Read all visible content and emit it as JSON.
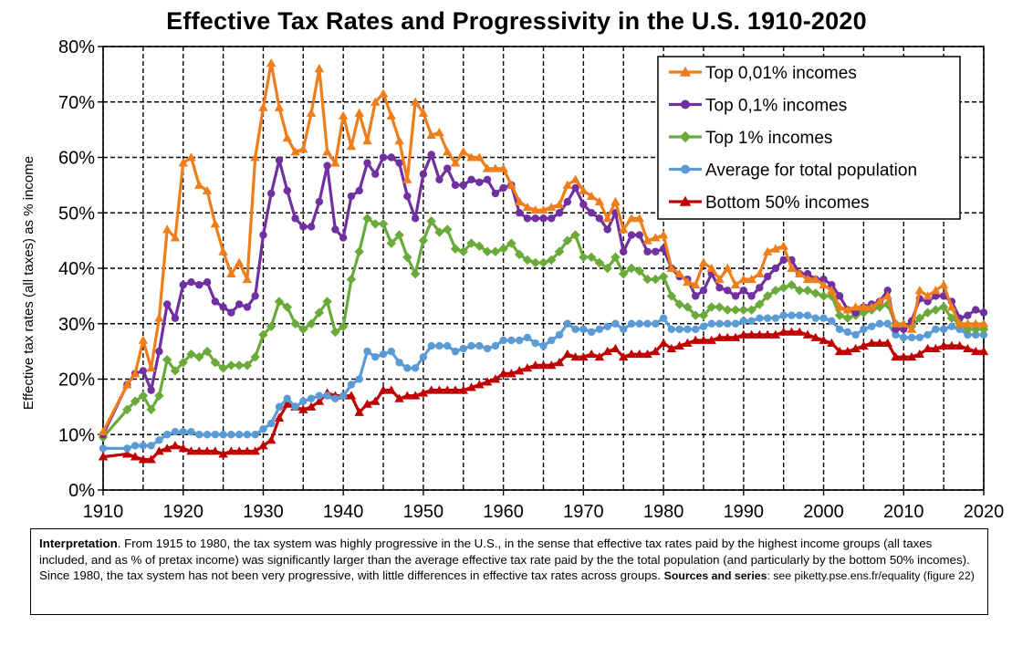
{
  "chart_data": {
    "type": "line",
    "title": "Effective Tax Rates and Progressivity in the U.S. 1910-2020",
    "ylabel": "Effective tax rates (all taxes) as % income",
    "xlabel": "",
    "xlim": [
      1910,
      2020
    ],
    "ylim": [
      0,
      80
    ],
    "x_ticks": [
      "1910",
      "1920",
      "1930",
      "1940",
      "1950",
      "1960",
      "1970",
      "1980",
      "1990",
      "2000",
      "2010",
      "2020"
    ],
    "y_ticks": [
      "0%",
      "10%",
      "20%",
      "30%",
      "40%",
      "50%",
      "60%",
      "70%",
      "80%"
    ],
    "grid": true,
    "legend_position": "top-right",
    "x": [
      1910,
      1913,
      1914,
      1915,
      1916,
      1917,
      1918,
      1919,
      1920,
      1921,
      1922,
      1923,
      1924,
      1925,
      1926,
      1927,
      1928,
      1929,
      1930,
      1931,
      1932,
      1933,
      1934,
      1935,
      1936,
      1937,
      1938,
      1939,
      1940,
      1941,
      1942,
      1943,
      1944,
      1945,
      1946,
      1947,
      1948,
      1949,
      1950,
      1951,
      1952,
      1953,
      1954,
      1955,
      1956,
      1957,
      1958,
      1959,
      1960,
      1961,
      1962,
      1963,
      1964,
      1965,
      1966,
      1967,
      1968,
      1969,
      1970,
      1971,
      1972,
      1973,
      1974,
      1975,
      1976,
      1977,
      1978,
      1979,
      1980,
      1981,
      1982,
      1983,
      1984,
      1985,
      1986,
      1987,
      1988,
      1989,
      1990,
      1991,
      1992,
      1993,
      1994,
      1995,
      1996,
      1997,
      1998,
      1999,
      2000,
      2001,
      2002,
      2003,
      2004,
      2005,
      2006,
      2007,
      2008,
      2009,
      2010,
      2011,
      2012,
      2013,
      2014,
      2015,
      2016,
      2017,
      2018,
      2019,
      2020
    ],
    "series": [
      {
        "name": "Top 0,01% incomes",
        "color": "#ef7d1a",
        "marker": "triangle",
        "values": [
          10.5,
          19,
          21,
          27,
          22,
          31,
          47,
          45.5,
          59,
          60,
          55,
          54,
          48,
          43,
          39,
          41,
          38,
          60,
          69,
          77,
          69,
          63.5,
          61,
          61.5,
          68,
          76,
          61,
          59,
          67.5,
          62,
          68,
          63,
          70,
          71.5,
          67.5,
          63,
          56,
          70,
          68,
          64,
          64.5,
          61,
          59,
          61,
          60,
          60,
          58,
          58,
          58,
          55,
          52,
          51,
          50.5,
          50.5,
          51,
          51.5,
          55,
          56,
          54,
          53,
          52,
          49,
          52,
          47,
          49,
          49,
          45,
          45.5,
          46,
          40,
          39,
          37.5,
          37,
          41,
          40,
          38,
          40,
          37,
          38,
          38,
          39,
          43,
          43.5,
          44,
          40,
          39,
          38,
          38,
          37,
          36,
          33,
          32.5,
          33,
          33,
          33,
          34,
          35,
          30,
          30,
          29,
          36,
          35,
          36,
          37,
          33,
          30,
          30,
          30,
          30
        ]
      },
      {
        "name": "Top 0,1% incomes",
        "color": "#7030a0",
        "marker": "circle",
        "values": [
          10,
          19,
          21,
          21.5,
          18,
          25,
          33.5,
          31,
          37,
          37.5,
          37,
          37.5,
          34,
          33,
          32,
          33.5,
          33,
          35,
          46,
          53.5,
          59.5,
          54,
          49,
          47.5,
          47.5,
          52,
          58.5,
          47,
          45.5,
          53,
          54,
          59,
          57,
          60,
          60,
          59,
          53,
          49,
          57,
          60.5,
          56,
          58,
          55,
          55,
          56,
          55.5,
          56,
          53.5,
          54.5,
          55,
          50,
          49,
          49,
          49,
          49,
          50,
          52,
          54.5,
          51.5,
          50,
          49,
          47,
          50,
          43,
          46,
          46,
          43,
          43,
          43.5,
          40,
          38.5,
          38,
          35,
          36,
          39,
          36.5,
          36,
          35,
          36,
          35,
          36.5,
          38.5,
          40,
          41.5,
          41.5,
          39,
          39,
          38,
          38,
          37,
          35,
          32.5,
          32,
          33,
          33.5,
          34,
          36,
          29,
          29,
          30.5,
          34.5,
          34,
          35,
          35,
          34,
          31,
          31.5,
          32.5,
          32
        ]
      },
      {
        "name": "Top 1% incomes",
        "color": "#6aaa3a",
        "marker": "diamond",
        "values": [
          9.5,
          14.5,
          16,
          17,
          14.5,
          17,
          23.5,
          21.5,
          23,
          24.5,
          24,
          25,
          23,
          22,
          22.5,
          22.5,
          22.5,
          24,
          28,
          29.5,
          34,
          33,
          30,
          29,
          30,
          32,
          34,
          28.5,
          29.5,
          38,
          43,
          49,
          48,
          48,
          44.5,
          46,
          42,
          39,
          45,
          48.5,
          46.5,
          47,
          43.5,
          43,
          44.5,
          44,
          43,
          43,
          43.5,
          44.5,
          42.5,
          41.5,
          41,
          41,
          41.5,
          43,
          45,
          46,
          42,
          42,
          41,
          40,
          42,
          39,
          40,
          39.5,
          38,
          38,
          38.5,
          35,
          33.5,
          33,
          31.5,
          31.5,
          33,
          33,
          32.5,
          32.5,
          32.5,
          32.5,
          33.5,
          35,
          36,
          36.5,
          37,
          36,
          36,
          35.5,
          35,
          35,
          31.5,
          31,
          31.5,
          32,
          32.5,
          33,
          33.5,
          30,
          29.5,
          29.5,
          31,
          32,
          32.5,
          33,
          31,
          30,
          29,
          29,
          29
        ]
      },
      {
        "name": "Average for total population",
        "color": "#5b9bd5",
        "marker": "circle",
        "values": [
          7.5,
          7.5,
          8,
          8,
          8,
          9,
          10,
          10.5,
          10.5,
          10.5,
          10,
          10,
          10,
          10,
          10,
          10,
          10,
          10,
          11,
          12,
          15,
          16.5,
          15,
          16,
          16.5,
          17,
          17,
          16.5,
          17,
          19,
          20,
          25,
          24,
          24.5,
          25,
          23,
          22,
          22,
          24,
          26,
          26,
          26,
          25,
          25.5,
          26,
          26,
          25.5,
          26,
          27,
          27,
          27,
          27.5,
          26.5,
          26,
          27,
          28,
          30,
          29,
          29,
          28.5,
          29,
          29.5,
          30,
          29,
          30,
          30,
          30,
          30,
          31,
          29,
          29,
          29,
          29,
          29.5,
          30,
          30,
          30,
          30,
          30.5,
          30.5,
          31,
          31,
          31,
          31.5,
          31.5,
          31.5,
          31.5,
          31,
          31,
          30.5,
          29,
          28.5,
          28,
          29,
          29.5,
          30,
          30,
          28,
          27.5,
          27.5,
          27.5,
          28,
          29,
          29,
          29.5,
          29,
          28,
          28,
          28
        ]
      },
      {
        "name": "Bottom 50% incomes",
        "color": "#c00000",
        "marker": "triangle",
        "values": [
          6,
          6.5,
          6,
          5.5,
          5.5,
          7,
          7.5,
          8,
          7.5,
          7,
          7,
          7,
          7,
          6.5,
          7,
          7,
          7,
          7,
          8,
          9,
          13,
          15.5,
          15,
          14.5,
          15,
          16,
          17.5,
          17,
          17,
          17,
          14,
          15.5,
          16,
          18,
          18,
          16.5,
          17,
          17,
          17.5,
          18,
          18,
          18,
          18,
          18,
          18.5,
          19,
          19.5,
          20,
          21,
          21,
          21.5,
          22,
          22.5,
          22.5,
          22.5,
          23,
          24.5,
          24,
          24,
          24.5,
          24,
          25,
          25.5,
          24,
          24.5,
          24.5,
          24.5,
          25,
          26.5,
          25.5,
          26,
          26.5,
          27,
          27,
          27,
          27.5,
          27.5,
          27.5,
          28,
          28,
          28,
          28,
          28,
          28.5,
          28.5,
          28.5,
          28,
          27.5,
          27,
          26.5,
          25,
          25,
          25.5,
          26,
          26.5,
          26.5,
          26.5,
          24,
          24,
          24,
          24.5,
          25.5,
          25.5,
          26,
          26,
          26,
          25.5,
          25,
          25
        ]
      }
    ]
  },
  "note": {
    "label": "Interpretation",
    "text": ". From 1915 to 1980, the tax system was highly progressive in the U.S., in the sense that effective tax rates paid by the highest income groups (all taxes included, and as % of pretax income) was significantly larger than the average effective tax rate paid by the the total population (and particularly by the bottom 50% incomes). Since 1980, the tax system has not been very progressive, with little differences in effective tax rates across groups. ",
    "sources_label": "Sources and series",
    "sources_text": ": see piketty.pse.ens.fr/equality (figure 22)"
  }
}
